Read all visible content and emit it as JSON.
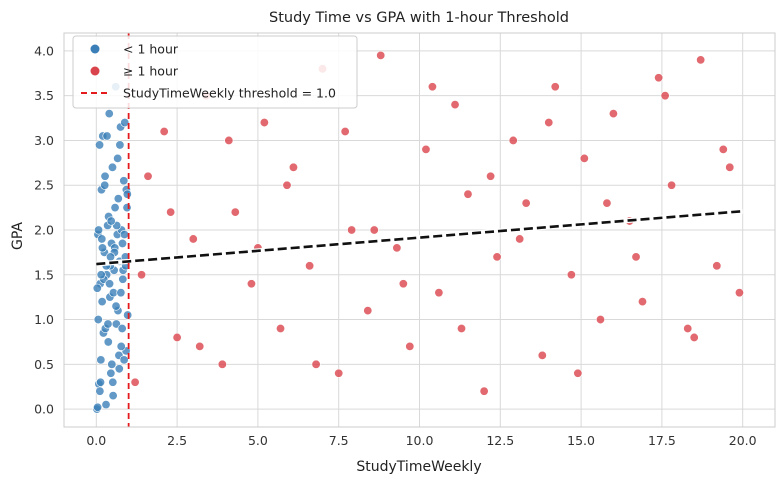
{
  "chart_data": {
    "type": "scatter",
    "title": "Study Time vs GPA with 1-hour Threshold",
    "xlabel": "StudyTimeWeekly",
    "ylabel": "GPA",
    "xlim": [
      -1.0,
      21.0
    ],
    "ylim": [
      -0.2,
      4.2
    ],
    "x_ticks": [
      0.0,
      2.5,
      5.0,
      7.5,
      10.0,
      12.5,
      15.0,
      17.5,
      20.0
    ],
    "x_tick_labels": [
      "0.0",
      "2.5",
      "5.0",
      "7.5",
      "10.0",
      "12.5",
      "15.0",
      "17.5",
      "20.0"
    ],
    "y_ticks": [
      0.0,
      0.5,
      1.0,
      1.5,
      2.0,
      2.5,
      3.0,
      3.5,
      4.0
    ],
    "y_tick_labels": [
      "0.0",
      "0.5",
      "1.0",
      "1.5",
      "2.0",
      "2.5",
      "3.0",
      "3.5",
      "4.0"
    ],
    "grid": true,
    "legend_position": "top-left",
    "colors": {
      "below": "#3b7fb8",
      "above": "#d9434b",
      "threshold": "#e41a1c",
      "trend": "#111111",
      "grid": "#d9d9d9",
      "frame": "#cccccc"
    },
    "series": [
      {
        "name": "< 1 hour",
        "x": [
          0.02,
          0.04,
          0.05,
          0.08,
          0.1,
          0.12,
          0.14,
          0.16,
          0.18,
          0.2,
          0.22,
          0.25,
          0.27,
          0.3,
          0.32,
          0.35,
          0.37,
          0.4,
          0.42,
          0.45,
          0.47,
          0.5,
          0.52,
          0.55,
          0.58,
          0.6,
          0.62,
          0.65,
          0.68,
          0.7,
          0.72,
          0.75,
          0.78,
          0.8,
          0.82,
          0.85,
          0.88,
          0.9,
          0.92,
          0.95,
          0.97,
          0.03,
          0.07,
          0.13,
          0.17,
          0.23,
          0.28,
          0.33,
          0.38,
          0.43,
          0.48,
          0.53,
          0.57,
          0.63,
          0.67,
          0.73,
          0.77,
          0.83,
          0.87,
          0.93,
          0.06,
          0.11,
          0.19,
          0.26,
          0.31,
          0.36,
          0.41,
          0.46,
          0.51,
          0.56,
          0.61,
          0.66,
          0.71,
          0.76,
          0.81,
          0.86,
          0.91,
          0.96,
          0.15,
          0.44
        ],
        "y": [
          0.0,
          0.02,
          1.95,
          0.28,
          2.95,
          1.4,
          0.55,
          2.45,
          1.2,
          3.05,
          0.85,
          1.75,
          2.6,
          0.05,
          1.5,
          2.05,
          0.75,
          3.3,
          1.25,
          0.4,
          1.85,
          2.7,
          0.15,
          1.55,
          2.25,
          3.6,
          0.95,
          1.95,
          2.35,
          0.6,
          1.65,
          3.15,
          2.0,
          0.9,
          1.45,
          2.55,
          3.2,
          1.7,
          0.65,
          2.25,
          1.05,
          1.35,
          2.0,
          0.3,
          1.9,
          1.45,
          0.9,
          3.05,
          2.15,
          1.6,
          0.5,
          1.3,
          1.8,
          2.05,
          1.1,
          2.95,
          0.7,
          1.55,
          1.95,
          2.45,
          1.0,
          0.2,
          1.8,
          2.5,
          1.6,
          0.95,
          1.4,
          2.1,
          0.3,
          1.75,
          1.15,
          2.8,
          0.45,
          1.3,
          1.85,
          0.55,
          1.6,
          2.4,
          1.5,
          1.7
        ]
      },
      {
        "name": "≥ 1 hour",
        "x": [
          1.2,
          1.6,
          2.1,
          2.5,
          3.0,
          3.4,
          3.9,
          4.3,
          4.8,
          5.2,
          5.7,
          6.1,
          6.6,
          7.0,
          7.5,
          7.9,
          8.4,
          8.8,
          9.3,
          9.7,
          10.2,
          10.6,
          11.1,
          11.5,
          12.0,
          12.4,
          12.9,
          13.3,
          13.8,
          14.2,
          14.7,
          15.1,
          15.6,
          16.0,
          16.5,
          16.9,
          17.4,
          17.8,
          18.3,
          18.7,
          19.2,
          19.6,
          19.9,
          1.4,
          2.3,
          3.2,
          4.1,
          5.0,
          5.9,
          6.8,
          7.7,
          8.6,
          9.5,
          10.4,
          11.3,
          12.2,
          13.1,
          14.0,
          14.9,
          15.8,
          16.7,
          17.6,
          18.5,
          19.4
        ],
        "y": [
          0.3,
          2.6,
          3.1,
          0.8,
          1.9,
          3.5,
          0.5,
          2.2,
          1.4,
          3.2,
          0.9,
          2.7,
          1.6,
          3.8,
          0.4,
          2.0,
          1.1,
          3.95,
          1.8,
          0.7,
          2.9,
          1.3,
          3.4,
          2.4,
          0.2,
          1.7,
          3.0,
          2.3,
          0.6,
          3.6,
          1.5,
          2.8,
          1.0,
          3.3,
          2.1,
          1.2,
          3.7,
          2.5,
          0.9,
          3.9,
          1.6,
          2.7,
          1.3,
          1.5,
          2.2,
          0.7,
          3.0,
          1.8,
          2.5,
          0.5,
          3.1,
          2.0,
          1.4,
          3.6,
          0.9,
          2.6,
          1.9,
          3.2,
          0.4,
          2.3,
          1.7,
          3.5,
          0.8,
          2.9
        ]
      }
    ],
    "threshold": {
      "name": "StudyTimeWeekly threshold = 1.0",
      "x": 1.0
    },
    "trend": {
      "x": [
        0.0,
        20.0
      ],
      "y": [
        1.62,
        2.21
      ]
    }
  }
}
